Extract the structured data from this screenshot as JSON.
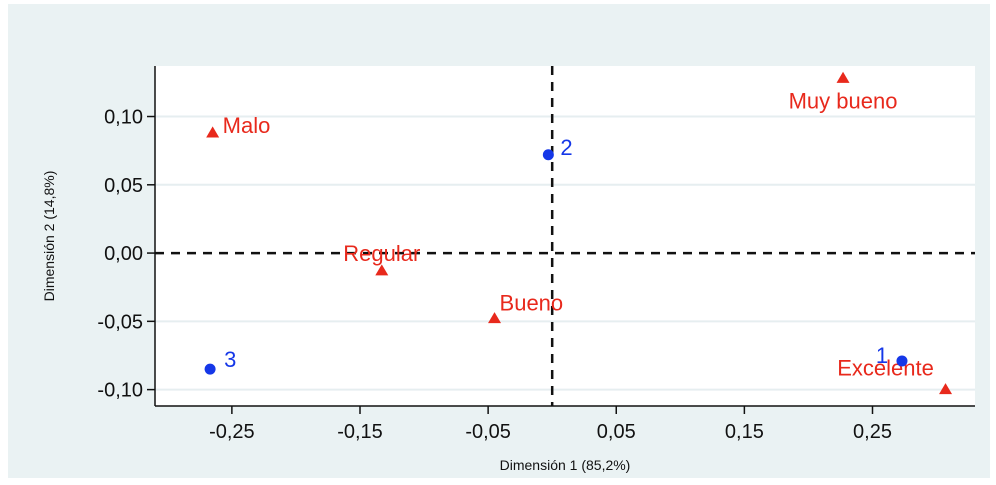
{
  "chart_data": {
    "type": "scatter",
    "xlabel": "Dimensión 1 (85,2%)",
    "ylabel": "Dimensión 2 (14,8%)",
    "xlim": [
      -0.31,
      0.33
    ],
    "ylim": [
      -0.112,
      0.137
    ],
    "x_ticks": [
      -0.25,
      -0.15,
      -0.05,
      0.05,
      0.15,
      0.25
    ],
    "x_tick_labels": [
      "-0,25",
      "-0,15",
      "-0,05",
      "0,05",
      "0,15",
      "0,25"
    ],
    "y_ticks": [
      0.1,
      0.05,
      0.0,
      -0.05,
      -0.1
    ],
    "y_tick_labels": [
      "0,10",
      "0,05",
      "0,00",
      "-0,05",
      "-0,10"
    ],
    "reference_lines": {
      "x": 0,
      "y": 0,
      "style": "dashed"
    },
    "grid": "horizontal",
    "series": [
      {
        "marker": "triangle",
        "color": "#e8291c",
        "points": [
          {
            "label": "Malo",
            "x": -0.265,
            "y": 0.088
          },
          {
            "label": "Muy bueno",
            "x": 0.227,
            "y": 0.128
          },
          {
            "label": "Regular",
            "x": -0.133,
            "y": -0.013
          },
          {
            "label": "Bueno",
            "x": -0.045,
            "y": -0.048
          },
          {
            "label": "Excelente",
            "x": 0.307,
            "y": -0.1
          }
        ]
      },
      {
        "marker": "circle",
        "color": "#1537e8",
        "points": [
          {
            "label": "2",
            "x": -0.003,
            "y": 0.072
          },
          {
            "label": "3",
            "x": -0.267,
            "y": -0.085
          },
          {
            "label": "1",
            "x": 0.273,
            "y": -0.079
          }
        ]
      }
    ]
  }
}
